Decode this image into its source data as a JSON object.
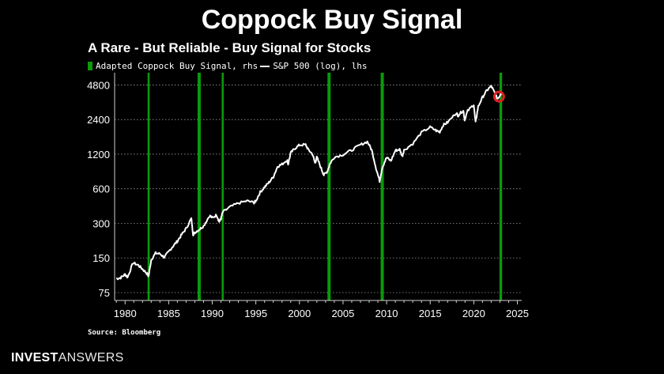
{
  "header": {
    "title": "Coppock Buy Signal"
  },
  "chart_data": {
    "type": "line",
    "title": "A Rare - But Reliable - Buy Signal for Stocks",
    "legend": [
      {
        "label": "Adapted Coppock Buy Signal, rhs",
        "color": "#0a9a0a"
      },
      {
        "label": "S&P 500 (log), lhs",
        "color": "#ffffff"
      }
    ],
    "legend_placement": "top-left",
    "xlim": [
      1978.8,
      2025.5
    ],
    "ylim": [
      64,
      5400
    ],
    "y_scale": "log",
    "grid": "horizontal-dotted",
    "x_ticks": [
      "1980",
      "1985",
      "1990",
      "1995",
      "2000",
      "2005",
      "2010",
      "2015",
      "2020",
      "2025"
    ],
    "y_ticks": [
      "75",
      "150",
      "300",
      "600",
      "1200",
      "2400",
      "4800"
    ],
    "buy_signals": [
      {
        "x": 1982.7,
        "strength": 1
      },
      {
        "x": 1988.5,
        "strength": 2
      },
      {
        "x": 1991.2,
        "strength": 1
      },
      {
        "x": 2003.4,
        "strength": 2
      },
      {
        "x": 2009.5,
        "strength": 2
      },
      {
        "x": 2023.1,
        "strength": 1.5
      }
    ],
    "series": [
      {
        "name": "S&P 500 (log), lhs",
        "points": [
          [
            1979.0,
            99
          ],
          [
            1979.5,
            101
          ],
          [
            1980.0,
            108
          ],
          [
            1980.3,
            102
          ],
          [
            1980.9,
            136
          ],
          [
            1981.5,
            130
          ],
          [
            1982.0,
            120
          ],
          [
            1982.5,
            110
          ],
          [
            1982.7,
            104
          ],
          [
            1983.0,
            145
          ],
          [
            1983.5,
            165
          ],
          [
            1984.0,
            163
          ],
          [
            1984.5,
            152
          ],
          [
            1985.0,
            170
          ],
          [
            1985.5,
            190
          ],
          [
            1986.0,
            210
          ],
          [
            1986.5,
            240
          ],
          [
            1987.0,
            270
          ],
          [
            1987.6,
            330
          ],
          [
            1987.8,
            240
          ],
          [
            1988.0,
            250
          ],
          [
            1988.5,
            265
          ],
          [
            1989.0,
            285
          ],
          [
            1989.7,
            350
          ],
          [
            1990.0,
            335
          ],
          [
            1990.5,
            355
          ],
          [
            1990.8,
            310
          ],
          [
            1991.0,
            330
          ],
          [
            1991.2,
            375
          ],
          [
            1992.0,
            415
          ],
          [
            1993.0,
            450
          ],
          [
            1994.0,
            470
          ],
          [
            1994.8,
            455
          ],
          [
            1995.0,
            470
          ],
          [
            1995.5,
            560
          ],
          [
            1996.0,
            620
          ],
          [
            1996.5,
            680
          ],
          [
            1997.0,
            760
          ],
          [
            1997.5,
            940
          ],
          [
            1998.0,
            980
          ],
          [
            1998.6,
            1070
          ],
          [
            1998.7,
            980
          ],
          [
            1999.0,
            1230
          ],
          [
            1999.5,
            1350
          ],
          [
            2000.0,
            1440
          ],
          [
            2000.7,
            1450
          ],
          [
            2001.0,
            1320
          ],
          [
            2001.5,
            1200
          ],
          [
            2001.8,
            1000
          ],
          [
            2002.0,
            1130
          ],
          [
            2002.5,
            900
          ],
          [
            2002.8,
            790
          ],
          [
            2003.2,
            850
          ],
          [
            2003.5,
            990
          ],
          [
            2004.0,
            1130
          ],
          [
            2005.0,
            1190
          ],
          [
            2006.0,
            1300
          ],
          [
            2007.0,
            1450
          ],
          [
            2007.8,
            1540
          ],
          [
            2008.3,
            1300
          ],
          [
            2008.8,
            900
          ],
          [
            2009.2,
            700
          ],
          [
            2009.5,
            920
          ],
          [
            2010.0,
            1120
          ],
          [
            2010.5,
            1050
          ],
          [
            2011.0,
            1290
          ],
          [
            2011.5,
            1320
          ],
          [
            2011.8,
            1150
          ],
          [
            2012.0,
            1300
          ],
          [
            2013.0,
            1480
          ],
          [
            2014.0,
            1850
          ],
          [
            2015.0,
            2060
          ],
          [
            2015.7,
            1920
          ],
          [
            2016.1,
            1880
          ],
          [
            2016.5,
            2150
          ],
          [
            2017.0,
            2270
          ],
          [
            2018.0,
            2750
          ],
          [
            2018.2,
            2600
          ],
          [
            2018.8,
            2900
          ],
          [
            2018.95,
            2400
          ],
          [
            2019.3,
            2850
          ],
          [
            2020.0,
            3250
          ],
          [
            2020.2,
            2250
          ],
          [
            2020.5,
            3100
          ],
          [
            2021.0,
            3750
          ],
          [
            2021.5,
            4300
          ],
          [
            2022.0,
            4700
          ],
          [
            2022.4,
            4100
          ],
          [
            2022.7,
            3650
          ],
          [
            2022.9,
            3800
          ],
          [
            2023.1,
            4050
          ],
          [
            2023.3,
            4150
          ]
        ]
      }
    ],
    "annotation_marker": {
      "x": 2022.9,
      "y": 3800,
      "color": "#e02020"
    }
  },
  "footer": {
    "source": "Source: Bloomberg",
    "brand_bold": "INVEST",
    "brand_light": "ANSWERS"
  }
}
